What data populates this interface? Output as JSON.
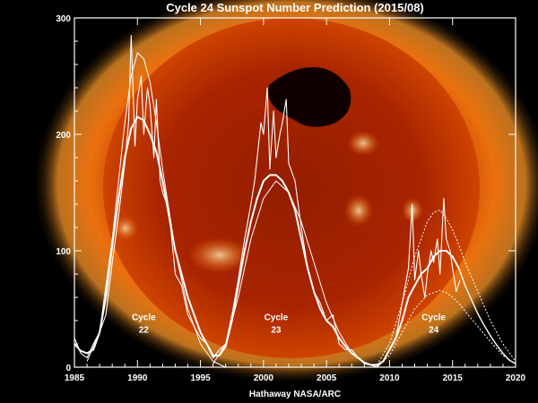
{
  "chart_data": {
    "type": "line",
    "title": "Cycle 24 Sunspot Number Prediction (2015/08)",
    "credit": "Hathaway  NASA/ARC",
    "xlim": [
      1985,
      2020
    ],
    "ylim": [
      0,
      300
    ],
    "x_ticks": [
      1985,
      1990,
      1995,
      2000,
      2005,
      2010,
      2015,
      2020
    ],
    "y_ticks": [
      0,
      100,
      200,
      300
    ],
    "grid": false,
    "background": "image of the Sun in X-rays (orange/red)",
    "cycle_labels": [
      {
        "line1": "Cycle",
        "line2": "22",
        "x": 1990.5,
        "y": 35
      },
      {
        "line1": "Cycle",
        "line2": "23",
        "x": 2001.0,
        "y": 35
      },
      {
        "line1": "Cycle",
        "line2": "24",
        "x": 2013.5,
        "y": 35
      }
    ],
    "series": [
      {
        "style": "monthly observed (jagged white line)",
        "x": [
          1985.0,
          1985.5,
          1986.0,
          1986.5,
          1987.0,
          1987.5,
          1988.0,
          1988.5,
          1989.0,
          1989.3,
          1989.5,
          1989.8,
          1990.0,
          1990.3,
          1990.5,
          1990.8,
          1991.0,
          1991.3,
          1991.5,
          1991.8,
          1992.0,
          1992.5,
          1993.0,
          1993.5,
          1994.0,
          1994.5,
          1995.0,
          1995.5,
          1996.0,
          1996.5,
          1997.0,
          1997.5,
          1998.0,
          1998.5,
          1999.0,
          1999.3,
          1999.5,
          1999.8,
          2000.0,
          2000.3,
          2000.5,
          2000.8,
          2001.0,
          2001.3,
          2001.5,
          2001.8,
          2002.0,
          2002.5,
          2003.0,
          2003.5,
          2004.0,
          2004.5,
          2005.0,
          2005.5,
          2006.0,
          2006.5,
          2007.0,
          2007.5,
          2008.0,
          2008.5,
          2009.0,
          2009.5,
          2010.0,
          2010.5,
          2011.0,
          2011.5,
          2011.8,
          2012.0,
          2012.3,
          2012.5,
          2012.8,
          2013.0,
          2013.3,
          2013.5,
          2013.8,
          2014.0,
          2014.3,
          2014.5,
          2014.8,
          2015.0,
          2015.3,
          2015.6
        ],
        "y": [
          25,
          12,
          8,
          20,
          30,
          45,
          90,
          130,
          175,
          210,
          285,
          190,
          230,
          250,
          200,
          240,
          225,
          180,
          230,
          160,
          150,
          135,
          80,
          70,
          45,
          35,
          25,
          20,
          8,
          15,
          20,
          45,
          75,
          110,
          140,
          160,
          180,
          210,
          200,
          240,
          170,
          220,
          180,
          200,
          210,
          230,
          175,
          160,
          120,
          85,
          65,
          55,
          40,
          45,
          20,
          15,
          15,
          8,
          3,
          2,
          0,
          5,
          15,
          25,
          55,
          85,
          140,
          75,
          100,
          80,
          60,
          80,
          100,
          90,
          110,
          80,
          145,
          110,
          100,
          85,
          65,
          75
        ]
      },
      {
        "style": "smoothed observed (thicker white line)",
        "x": [
          1985.0,
          1985.5,
          1986.0,
          1986.5,
          1987.0,
          1987.5,
          1988.0,
          1988.5,
          1989.0,
          1989.5,
          1990.0,
          1990.5,
          1991.0,
          1991.5,
          1992.0,
          1992.5,
          1993.0,
          1993.5,
          1994.0,
          1994.5,
          1995.0,
          1995.5,
          1996.0,
          1996.5,
          1997.0,
          1997.5,
          1998.0,
          1998.5,
          1999.0,
          1999.5,
          2000.0,
          2000.5,
          2001.0,
          2001.5,
          2002.0,
          2002.5,
          2003.0,
          2003.5,
          2004.0,
          2004.5,
          2005.0,
          2005.5,
          2006.0,
          2006.5,
          2007.0,
          2007.5,
          2008.0,
          2008.5,
          2009.0,
          2009.5,
          2010.0,
          2010.5,
          2011.0,
          2011.5,
          2012.0,
          2012.5,
          2013.0,
          2013.5,
          2014.0,
          2014.5,
          2015.0,
          2015.5
        ],
        "y": [
          20,
          14,
          12,
          15,
          30,
          60,
          105,
          145,
          180,
          205,
          215,
          212,
          200,
          185,
          160,
          130,
          100,
          80,
          60,
          45,
          30,
          20,
          10,
          10,
          18,
          40,
          70,
          100,
          125,
          145,
          160,
          165,
          165,
          160,
          150,
          135,
          110,
          85,
          65,
          50,
          40,
          35,
          25,
          18,
          12,
          8,
          4,
          2,
          2,
          5,
          15,
          25,
          40,
          60,
          70,
          80,
          85,
          95,
          100,
          100,
          95,
          85
        ]
      },
      {
        "style": "prediction curve (thin line, center)",
        "x": [
          2015.5,
          2016,
          2016.5,
          2017,
          2017.5,
          2018,
          2018.5,
          2019,
          2019.5,
          2020
        ],
        "y": [
          85,
          70,
          58,
          46,
          36,
          27,
          19,
          12,
          6,
          3
        ]
      },
      {
        "style": "prediction upper bound (dotted)",
        "x": [
          2009.0,
          2010.0,
          2011.0,
          2012.0,
          2013.0,
          2013.5,
          2014.0,
          2014.5,
          2015.0,
          2015.5,
          2016,
          2017,
          2018,
          2019,
          2020
        ],
        "y": [
          2,
          20,
          55,
          95,
          125,
          133,
          135,
          128,
          118,
          105,
          90,
          65,
          40,
          20,
          5
        ]
      },
      {
        "style": "prediction lower bound (dotted)",
        "x": [
          2009.0,
          2010.0,
          2011.0,
          2012.0,
          2013.0,
          2014.0,
          2014.5,
          2015.0,
          2015.5,
          2016,
          2017,
          2018,
          2019,
          2020
        ],
        "y": [
          1,
          10,
          30,
          50,
          62,
          66,
          64,
          60,
          55,
          48,
          35,
          22,
          10,
          3
        ]
      },
      {
        "style": "Cycle 22 fit (thin)",
        "x": [
          1986.0,
          1987.0,
          1988.0,
          1989.0,
          1989.5,
          1990.0,
          1990.5,
          1991.0,
          1991.5,
          1992.0,
          1993.0,
          1994.0,
          1995.0,
          1996.0,
          1997.0
        ],
        "y": [
          5,
          30,
          110,
          210,
          250,
          270,
          265,
          245,
          210,
          170,
          100,
          50,
          20,
          5,
          0
        ]
      },
      {
        "style": "Cycle 23 fit (thin)",
        "x": [
          1996.0,
          1997.0,
          1998.0,
          1999.0,
          2000.0,
          2001.0,
          2002.0,
          2003.0,
          2004.0,
          2005.0,
          2006.0,
          2007.0,
          2008.0,
          2009.0
        ],
        "y": [
          3,
          20,
          60,
          110,
          145,
          160,
          150,
          125,
          90,
          55,
          30,
          12,
          4,
          0
        ]
      }
    ],
    "colors": {
      "line": "#ffffff",
      "axis_text": "#ffffff"
    }
  }
}
